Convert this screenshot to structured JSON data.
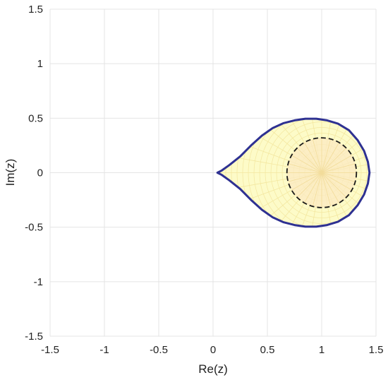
{
  "chart_data": {
    "type": "line",
    "title": "",
    "xlabel": "Re(z)",
    "ylabel": "Im(z)",
    "xlim": [
      -1.5,
      1.5
    ],
    "ylim": [
      -1.5,
      1.5
    ],
    "x_ticks": [
      -1.5,
      -1,
      -0.5,
      0,
      0.5,
      1,
      1.5
    ],
    "y_ticks": [
      -1.5,
      -1,
      -0.5,
      0,
      0.5,
      1,
      1.5
    ],
    "x_tick_labels": [
      "-1.5",
      "-1",
      "-0.5",
      "0",
      "0.5",
      "1",
      "1.5"
    ],
    "y_tick_labels": [
      "-1.5",
      "-1",
      "-0.5",
      "0",
      "0.5",
      "1",
      "1.5"
    ],
    "grid": true,
    "series": [
      {
        "style": "solid boundary (teardrop region, filled)",
        "color": "#2e3192",
        "fill": "#fdfbc8",
        "points": [
          [
            0.04,
            0.0
          ],
          [
            0.08,
            0.02
          ],
          [
            0.15,
            0.07
          ],
          [
            0.25,
            0.15
          ],
          [
            0.35,
            0.25
          ],
          [
            0.45,
            0.34
          ],
          [
            0.55,
            0.41
          ],
          [
            0.65,
            0.455
          ],
          [
            0.75,
            0.48
          ],
          [
            0.85,
            0.495
          ],
          [
            0.95,
            0.495
          ],
          [
            1.05,
            0.48
          ],
          [
            1.15,
            0.45
          ],
          [
            1.25,
            0.39
          ],
          [
            1.33,
            0.3
          ],
          [
            1.39,
            0.2
          ],
          [
            1.425,
            0.1
          ],
          [
            1.44,
            0.0
          ],
          [
            1.425,
            -0.1
          ],
          [
            1.39,
            -0.2
          ],
          [
            1.33,
            -0.3
          ],
          [
            1.25,
            -0.39
          ],
          [
            1.15,
            -0.45
          ],
          [
            1.05,
            -0.48
          ],
          [
            0.95,
            -0.495
          ],
          [
            0.85,
            -0.495
          ],
          [
            0.75,
            -0.48
          ],
          [
            0.65,
            -0.455
          ],
          [
            0.55,
            -0.41
          ],
          [
            0.45,
            -0.34
          ],
          [
            0.35,
            -0.25
          ],
          [
            0.25,
            -0.15
          ],
          [
            0.15,
            -0.07
          ],
          [
            0.08,
            -0.02
          ],
          [
            0.04,
            0.0
          ]
        ]
      },
      {
        "style": "dashed circle",
        "color": "#1a1a1a",
        "fill": "#fbeac3",
        "center": [
          1.0,
          0.0
        ],
        "radius": 0.32
      }
    ]
  }
}
